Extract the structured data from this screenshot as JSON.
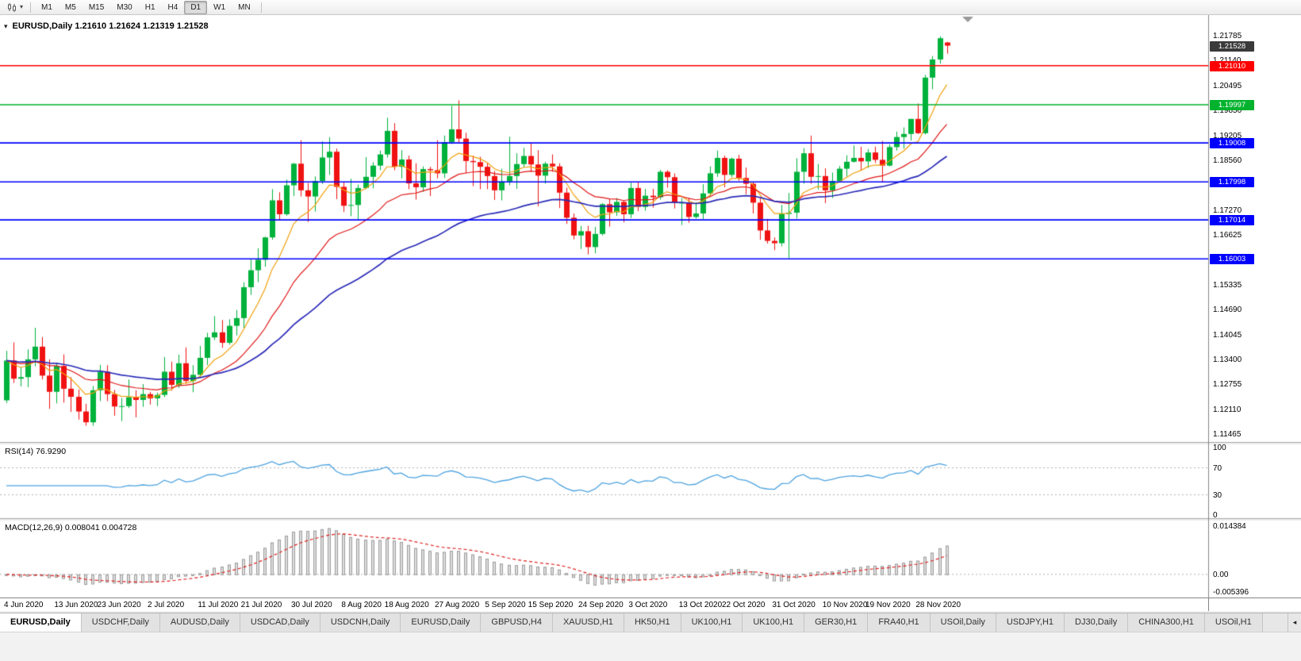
{
  "toolbar": {
    "timeframes": [
      "M1",
      "M5",
      "M15",
      "M30",
      "H1",
      "H4",
      "D1",
      "W1",
      "MN"
    ],
    "active_timeframe": "D1"
  },
  "main_chart": {
    "title": "EURUSD,Daily 1.21610 1.21624 1.21319 1.21528",
    "current_price_badge": {
      "label": "1.21528",
      "value": 1.21528,
      "color": "#3a3a3a"
    },
    "price_axis_labels": [
      "1.21785",
      "1.21140",
      "1.20495",
      "1.19850",
      "1.19205",
      "1.18560",
      "1.17915",
      "1.17270",
      "1.16625",
      "1.15980",
      "1.15335",
      "1.14690",
      "1.14045",
      "1.13400",
      "1.12755",
      "1.12110",
      "1.11465"
    ]
  },
  "chart_data": [
    {
      "type": "candlestick",
      "title": "EURUSD,Daily",
      "ylim": [
        1.1126,
        1.2232
      ],
      "up_color": "#00b23c",
      "down_color": "#f01212",
      "last_price": 1.21528,
      "horizontal_lines": [
        {
          "value": 1.2101,
          "color": "#ff0000",
          "label": "1.21010"
        },
        {
          "value": 1.19997,
          "color": "#00b22d",
          "label": "1.19997"
        },
        {
          "value": 1.19008,
          "color": "#0000ff",
          "label": "1.19008"
        },
        {
          "value": 1.17998,
          "color": "#0000ff",
          "label": "1.17998"
        },
        {
          "value": 1.17014,
          "color": "#0000ff",
          "label": "1.17014"
        },
        {
          "value": 1.16003,
          "color": "#0000ff",
          "label": "1.16003"
        }
      ],
      "moving_averages": [
        {
          "method": "ema",
          "period": 8,
          "color": "#f0a10a"
        },
        {
          "method": "ema",
          "period": 20,
          "color": "#e01616"
        },
        {
          "method": "ema",
          "period": 45,
          "color": "#2a2ab8"
        }
      ],
      "x_tick_labels": [
        "4 Jun 2020",
        "13 Jun 2020",
        "23 Jun 2020",
        "2 Jul 2020",
        "11 Jul 2020",
        "21 Jul 2020",
        "30 Jul 2020",
        "8 Aug 2020",
        "18 Aug 2020",
        "27 Aug 2020",
        "5 Sep 2020",
        "15 Sep 2020",
        "24 Sep 2020",
        "3 Oct 2020",
        "13 Oct 2020",
        "22 Oct 2020",
        "31 Oct 2020",
        "10 Nov 2020",
        "19 Nov 2020",
        "28 Nov 2020"
      ],
      "x_tick_indexes": [
        0,
        7,
        13,
        20,
        27,
        33,
        40,
        47,
        53,
        60,
        67,
        73,
        80,
        87,
        94,
        100,
        107,
        114,
        120,
        127
      ],
      "ohlc": [
        [
          1.1234,
          1.1362,
          1.1227,
          1.1337
        ],
        [
          1.1337,
          1.1384,
          1.1279,
          1.129
        ],
        [
          1.129,
          1.132,
          1.127,
          1.1294
        ],
        [
          1.1294,
          1.1366,
          1.1268,
          1.134
        ],
        [
          1.134,
          1.1422,
          1.1322,
          1.1373
        ],
        [
          1.1373,
          1.1398,
          1.1288,
          1.1298
        ],
        [
          1.1298,
          1.134,
          1.1212,
          1.1256
        ],
        [
          1.1256,
          1.133,
          1.1226,
          1.1323
        ],
        [
          1.1323,
          1.1353,
          1.1228,
          1.1264
        ],
        [
          1.1264,
          1.1294,
          1.1204,
          1.1243
        ],
        [
          1.1243,
          1.1262,
          1.1184,
          1.1205
        ],
        [
          1.1205,
          1.1225,
          1.1168,
          1.1177
        ],
        [
          1.1177,
          1.1271,
          1.1168,
          1.126
        ],
        [
          1.126,
          1.1326,
          1.1232,
          1.1308
        ],
        [
          1.1308,
          1.1325,
          1.1232,
          1.125
        ],
        [
          1.125,
          1.1261,
          1.1194,
          1.1218
        ],
        [
          1.1218,
          1.124,
          1.118,
          1.1219
        ],
        [
          1.1219,
          1.1288,
          1.1214,
          1.1242
        ],
        [
          1.1242,
          1.126,
          1.119,
          1.1235
        ],
        [
          1.1235,
          1.1276,
          1.1217,
          1.125
        ],
        [
          1.125,
          1.1256,
          1.1223,
          1.1239
        ],
        [
          1.1239,
          1.1254,
          1.1219,
          1.1248
        ],
        [
          1.1248,
          1.1346,
          1.1242,
          1.1308
        ],
        [
          1.1308,
          1.1334,
          1.1259,
          1.1274
        ],
        [
          1.1274,
          1.1352,
          1.1266,
          1.133
        ],
        [
          1.133,
          1.1371,
          1.1277,
          1.1284
        ],
        [
          1.1284,
          1.1325,
          1.1255,
          1.13
        ],
        [
          1.13,
          1.1375,
          1.1292,
          1.1344
        ],
        [
          1.1344,
          1.1409,
          1.1325,
          1.1397
        ],
        [
          1.1397,
          1.1452,
          1.139,
          1.141
        ],
        [
          1.141,
          1.1442,
          1.137,
          1.1383
        ],
        [
          1.1383,
          1.1444,
          1.1378,
          1.1427
        ],
        [
          1.1427,
          1.1468,
          1.1402,
          1.1447
        ],
        [
          1.1447,
          1.154,
          1.1422,
          1.1527
        ],
        [
          1.1527,
          1.1601,
          1.1507,
          1.1571
        ],
        [
          1.1571,
          1.1628,
          1.154,
          1.1598
        ],
        [
          1.1598,
          1.1658,
          1.158,
          1.1656
        ],
        [
          1.1656,
          1.1781,
          1.165,
          1.1752
        ],
        [
          1.1752,
          1.1773,
          1.1701,
          1.1716
        ],
        [
          1.1716,
          1.1806,
          1.1712,
          1.1791
        ],
        [
          1.1791,
          1.1849,
          1.1763,
          1.1847
        ],
        [
          1.1847,
          1.1908,
          1.1762,
          1.1778
        ],
        [
          1.1778,
          1.1797,
          1.1696,
          1.1762
        ],
        [
          1.1762,
          1.1814,
          1.1723,
          1.1802
        ],
        [
          1.1802,
          1.1905,
          1.1794,
          1.1863
        ],
        [
          1.1863,
          1.1916,
          1.1818,
          1.1878
        ],
        [
          1.1878,
          1.1886,
          1.1755,
          1.1787
        ],
        [
          1.1787,
          1.1799,
          1.1722,
          1.1738
        ],
        [
          1.1738,
          1.1808,
          1.1711,
          1.174
        ],
        [
          1.174,
          1.1793,
          1.17,
          1.1784
        ],
        [
          1.1784,
          1.1864,
          1.1781,
          1.1813
        ],
        [
          1.1813,
          1.1851,
          1.1783,
          1.1842
        ],
        [
          1.1842,
          1.1881,
          1.183,
          1.1871
        ],
        [
          1.1871,
          1.1966,
          1.1863,
          1.1932
        ],
        [
          1.1932,
          1.1952,
          1.183,
          1.1839
        ],
        [
          1.1839,
          1.1882,
          1.1809,
          1.1858
        ],
        [
          1.1858,
          1.1868,
          1.1781,
          1.1796
        ],
        [
          1.1796,
          1.1848,
          1.1754,
          1.1786
        ],
        [
          1.1786,
          1.184,
          1.1774,
          1.1833
        ],
        [
          1.1833,
          1.1839,
          1.1763,
          1.183
        ],
        [
          1.183,
          1.1908,
          1.1809,
          1.1822
        ],
        [
          1.1822,
          1.192,
          1.181,
          1.1903
        ],
        [
          1.1903,
          1.1997,
          1.1898,
          1.1936
        ],
        [
          1.1936,
          1.2011,
          1.1901,
          1.1912
        ],
        [
          1.1912,
          1.1927,
          1.1822,
          1.1854
        ],
        [
          1.1854,
          1.1868,
          1.1789,
          1.1851
        ],
        [
          1.1851,
          1.1865,
          1.1781,
          1.1839
        ],
        [
          1.1839,
          1.1848,
          1.1781,
          1.1815
        ],
        [
          1.1815,
          1.1828,
          1.1753,
          1.1778
        ],
        [
          1.1778,
          1.1834,
          1.1752,
          1.1801
        ],
        [
          1.1801,
          1.1917,
          1.1791,
          1.1815
        ],
        [
          1.1815,
          1.1874,
          1.1782,
          1.1846
        ],
        [
          1.1846,
          1.1888,
          1.1838,
          1.1867
        ],
        [
          1.1867,
          1.1899,
          1.1826,
          1.1845
        ],
        [
          1.1845,
          1.1882,
          1.1737,
          1.1816
        ],
        [
          1.1816,
          1.1852,
          1.1795,
          1.1847
        ],
        [
          1.1847,
          1.1871,
          1.1826,
          1.184
        ],
        [
          1.184,
          1.1848,
          1.1732,
          1.1772
        ],
        [
          1.1772,
          1.1785,
          1.1691,
          1.1707
        ],
        [
          1.1707,
          1.1718,
          1.1651,
          1.1661
        ],
        [
          1.1661,
          1.1686,
          1.1626,
          1.1672
        ],
        [
          1.1672,
          1.1686,
          1.1612,
          1.1631
        ],
        [
          1.1631,
          1.1683,
          1.1615,
          1.1665
        ],
        [
          1.1665,
          1.1745,
          1.1661,
          1.1742
        ],
        [
          1.1742,
          1.1755,
          1.1684,
          1.1721
        ],
        [
          1.1721,
          1.1758,
          1.1712,
          1.1748
        ],
        [
          1.1748,
          1.1752,
          1.1695,
          1.1716
        ],
        [
          1.1716,
          1.1798,
          1.1706,
          1.1784
        ],
        [
          1.1784,
          1.1799,
          1.1724,
          1.1735
        ],
        [
          1.1735,
          1.1782,
          1.1725,
          1.1764
        ],
        [
          1.1764,
          1.1782,
          1.1733,
          1.176
        ],
        [
          1.176,
          1.1831,
          1.1754,
          1.1826
        ],
        [
          1.1826,
          1.183,
          1.1785,
          1.1812
        ],
        [
          1.1812,
          1.1822,
          1.1731,
          1.1745
        ],
        [
          1.1745,
          1.1758,
          1.1688,
          1.1746
        ],
        [
          1.1746,
          1.1758,
          1.1694,
          1.1709
        ],
        [
          1.1709,
          1.1747,
          1.1705,
          1.1718
        ],
        [
          1.1718,
          1.1794,
          1.1703,
          1.177
        ],
        [
          1.177,
          1.184,
          1.1764,
          1.1822
        ],
        [
          1.1822,
          1.1881,
          1.1813,
          1.1862
        ],
        [
          1.1862,
          1.1868,
          1.1786,
          1.1818
        ],
        [
          1.1818,
          1.1863,
          1.1812,
          1.186
        ],
        [
          1.186,
          1.187,
          1.1803,
          1.181
        ],
        [
          1.181,
          1.1837,
          1.1768,
          1.1795
        ],
        [
          1.1795,
          1.18,
          1.1718,
          1.1746
        ],
        [
          1.1746,
          1.1759,
          1.165,
          1.1674
        ],
        [
          1.1674,
          1.1704,
          1.164,
          1.1647
        ],
        [
          1.1647,
          1.1656,
          1.1623,
          1.1641
        ],
        [
          1.1641,
          1.174,
          1.1633,
          1.1717
        ],
        [
          1.1717,
          1.1771,
          1.1602,
          1.172
        ],
        [
          1.172,
          1.1861,
          1.1705,
          1.1826
        ],
        [
          1.1826,
          1.1887,
          1.1795,
          1.1874
        ],
        [
          1.1874,
          1.192,
          1.1795,
          1.1813
        ],
        [
          1.1813,
          1.1846,
          1.178,
          1.1815
        ],
        [
          1.1815,
          1.1835,
          1.1745,
          1.1778
        ],
        [
          1.1778,
          1.1824,
          1.1758,
          1.1802
        ],
        [
          1.1802,
          1.1841,
          1.1799,
          1.1834
        ],
        [
          1.1834,
          1.1869,
          1.1814,
          1.1852
        ],
        [
          1.1852,
          1.1894,
          1.185,
          1.1862
        ],
        [
          1.1862,
          1.1891,
          1.1829,
          1.1853
        ],
        [
          1.1853,
          1.1885,
          1.1836,
          1.1876
        ],
        [
          1.1876,
          1.1891,
          1.1849,
          1.1857
        ],
        [
          1.1857,
          1.1906,
          1.18,
          1.1842
        ],
        [
          1.1842,
          1.1897,
          1.184,
          1.189
        ],
        [
          1.189,
          1.193,
          1.1881,
          1.1916
        ],
        [
          1.1916,
          1.1941,
          1.1886,
          1.1924
        ],
        [
          1.1924,
          1.1963,
          1.1907,
          1.1963
        ],
        [
          1.1963,
          1.2003,
          1.1924,
          1.1926
        ],
        [
          1.1926,
          1.2077,
          1.1923,
          1.207
        ],
        [
          1.207,
          1.2126,
          1.204,
          1.2117
        ],
        [
          1.2117,
          1.2177,
          1.2106,
          1.2172
        ],
        [
          1.2161,
          1.21624,
          1.21319,
          1.21528
        ]
      ]
    },
    {
      "type": "line",
      "title": "RSI(14)",
      "label": "RSI(14) 76.9290",
      "params": {
        "period": 14
      },
      "current_value": 76.929,
      "levels": [
        70,
        30
      ],
      "axis_labels": [
        "100",
        "70",
        "30",
        "0"
      ],
      "ylim": [
        0,
        100
      ],
      "color": "#4da3e0"
    },
    {
      "type": "macd",
      "title": "MACD(12,26,9)",
      "label": "MACD(12,26,9) 0.008041 0.004728",
      "params": {
        "fast": 12,
        "slow": 26,
        "signal": 9
      },
      "current_values": [
        0.008041,
        0.004728
      ],
      "axis_labels": [
        "0.014384",
        "0.00",
        "-0.005396"
      ],
      "ylim": [
        -0.006,
        0.0152
      ],
      "histogram_color": "#dedede",
      "signal_color": "#e02020"
    }
  ],
  "tabs": {
    "items": [
      "EURUSD,Daily",
      "USDCHF,Daily",
      "AUDUSD,Daily",
      "USDCAD,Daily",
      "USDCNH,Daily",
      "EURUSD,Daily",
      "GBPUSD,H4",
      "XAUUSD,H1",
      "HK50,H1",
      "UK100,H1",
      "UK100,H1",
      "GER30,H1",
      "FRA40,H1",
      "USOil,Daily",
      "USDJPY,H1",
      "DJ30,Daily",
      "CHINA300,H1",
      "USOil,H1"
    ],
    "active_index": 0,
    "scroll_left_glyph": "◂"
  }
}
